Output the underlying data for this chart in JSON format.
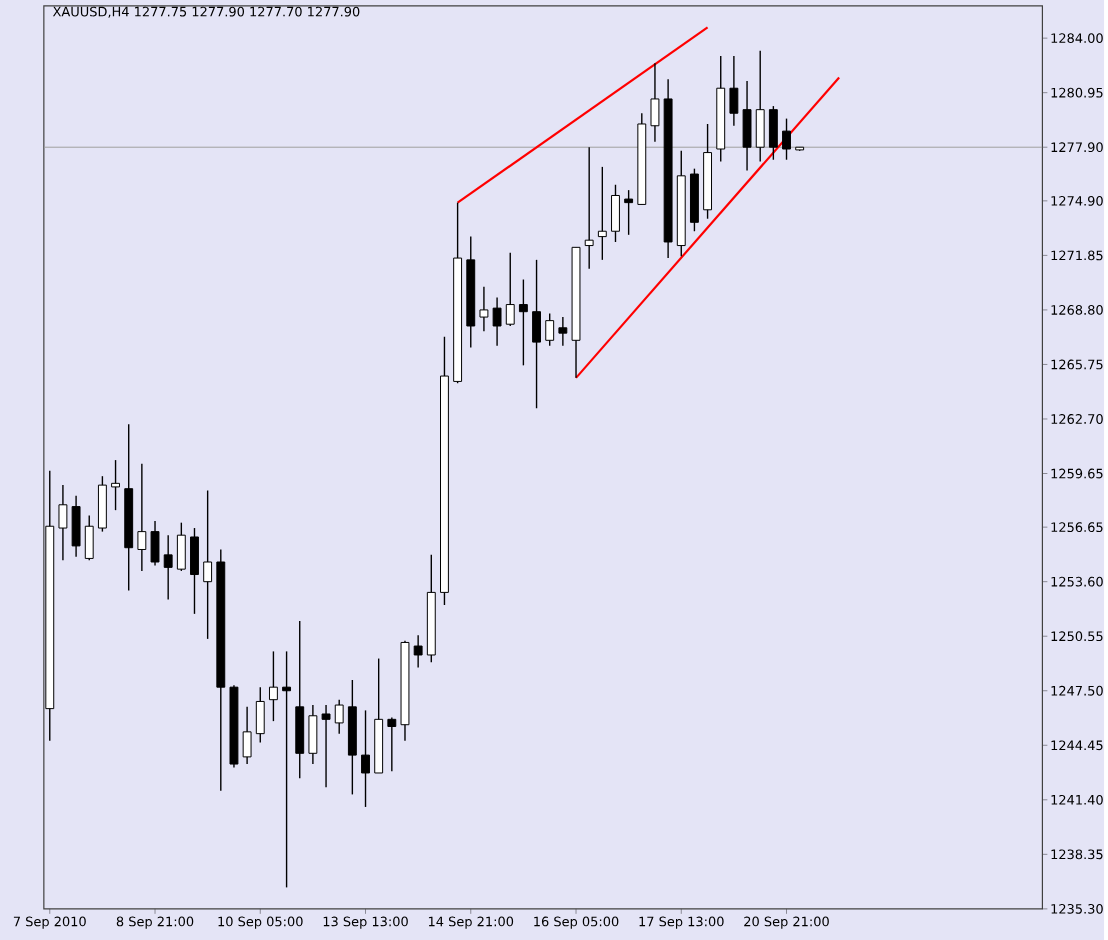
{
  "chart_data": {
    "type": "candlestick",
    "title": "XAUUSD,H4 1277.75 1277.90 1277.70 1277.90",
    "categories": [
      "7 Sep 2010",
      null,
      null,
      null,
      null,
      null,
      null,
      null,
      "8 Sep 21:00",
      null,
      null,
      null,
      null,
      null,
      null,
      null,
      "10 Sep 05:00",
      null,
      null,
      null,
      null,
      null,
      null,
      null,
      "13 Sep 13:00",
      null,
      null,
      null,
      null,
      null,
      null,
      null,
      "14 Sep 21:00",
      null,
      null,
      null,
      null,
      null,
      null,
      null,
      "16 Sep 05:00",
      null,
      null,
      null,
      null,
      null,
      null,
      null,
      "17 Sep 13:00",
      null,
      null,
      null,
      null,
      null,
      null,
      null,
      "20 Sep 21:00",
      null,
      null,
      null,
      null,
      null,
      null,
      null,
      null,
      null,
      null,
      null,
      null,
      null,
      null,
      null,
      null,
      null,
      null,
      null
    ],
    "ohlc": [
      [
        1246.5,
        1259.8,
        1244.7,
        1256.7
      ],
      [
        1256.6,
        1259.0,
        1254.8,
        1257.9
      ],
      [
        1257.8,
        1258.4,
        1255.0,
        1255.6
      ],
      [
        1254.9,
        1257.3,
        1254.8,
        1256.7
      ],
      [
        1256.6,
        1259.5,
        1256.4,
        1259.0
      ],
      [
        1258.9,
        1260.4,
        1257.6,
        1259.1
      ],
      [
        1258.8,
        1262.4,
        1253.1,
        1255.5
      ],
      [
        1255.4,
        1260.2,
        1254.2,
        1256.4
      ],
      [
        1256.4,
        1257.0,
        1254.5,
        1254.7
      ],
      [
        1255.1,
        1256.2,
        1252.6,
        1254.4
      ],
      [
        1254.3,
        1256.9,
        1254.2,
        1256.2
      ],
      [
        1256.1,
        1256.6,
        1251.8,
        1254.0
      ],
      [
        1253.6,
        1258.7,
        1250.4,
        1254.7
      ],
      [
        1254.7,
        1255.4,
        1241.9,
        1247.7
      ],
      [
        1247.7,
        1247.8,
        1243.2,
        1243.4
      ],
      [
        1243.8,
        1246.6,
        1243.4,
        1245.2
      ],
      [
        1245.1,
        1247.7,
        1244.6,
        1246.9
      ],
      [
        1247.0,
        1249.7,
        1245.8,
        1247.7
      ],
      [
        1247.7,
        1249.7,
        1236.5,
        1247.5
      ],
      [
        1246.6,
        1251.4,
        1242.6,
        1244.0
      ],
      [
        1244.0,
        1246.7,
        1243.4,
        1246.1
      ],
      [
        1246.2,
        1246.7,
        1242.1,
        1245.9
      ],
      [
        1245.7,
        1247.0,
        1245.1,
        1246.7
      ],
      [
        1246.6,
        1248.1,
        1241.7,
        1243.9
      ],
      [
        1243.9,
        1246.4,
        1241.0,
        1242.9
      ],
      [
        1242.9,
        1249.3,
        1242.9,
        1245.9
      ],
      [
        1245.9,
        1246.0,
        1243.0,
        1245.5
      ],
      [
        1245.6,
        1250.3,
        1244.7,
        1250.2
      ],
      [
        1250.0,
        1250.6,
        1248.8,
        1249.5
      ],
      [
        1249.5,
        1255.1,
        1249.1,
        1253.0
      ],
      [
        1253.0,
        1267.3,
        1252.3,
        1265.1
      ],
      [
        1264.8,
        1274.8,
        1264.7,
        1271.7
      ],
      [
        1271.6,
        1272.9,
        1266.7,
        1267.9
      ],
      [
        1268.4,
        1270.1,
        1267.6,
        1268.8
      ],
      [
        1268.9,
        1269.5,
        1266.8,
        1267.9
      ],
      [
        1268.0,
        1272.0,
        1267.9,
        1269.1
      ],
      [
        1269.1,
        1270.5,
        1265.7,
        1268.7
      ],
      [
        1268.7,
        1271.6,
        1263.3,
        1267.0
      ],
      [
        1267.1,
        1268.6,
        1266.8,
        1268.2
      ],
      [
        1267.8,
        1268.4,
        1266.8,
        1267.5
      ],
      [
        1267.1,
        1272.3,
        1265.0,
        1272.3
      ],
      [
        1272.4,
        1277.9,
        1271.1,
        1272.7
      ],
      [
        1272.9,
        1276.8,
        1271.6,
        1273.2
      ],
      [
        1273.2,
        1275.8,
        1272.6,
        1275.2
      ],
      [
        1275.0,
        1275.5,
        1273.0,
        1274.8
      ],
      [
        1274.7,
        1279.8,
        1274.7,
        1279.2
      ],
      [
        1279.1,
        1282.6,
        1278.2,
        1280.6
      ],
      [
        1280.6,
        1281.7,
        1271.7,
        1272.6
      ],
      [
        1272.4,
        1277.7,
        1271.8,
        1276.3
      ],
      [
        1276.4,
        1276.7,
        1273.2,
        1273.7
      ],
      [
        1274.4,
        1279.2,
        1273.9,
        1277.6
      ],
      [
        1277.8,
        1283.0,
        1277.1,
        1281.2
      ],
      [
        1281.2,
        1283.0,
        1279.1,
        1279.8
      ],
      [
        1280.0,
        1281.6,
        1276.6,
        1277.9
      ],
      [
        1277.9,
        1283.3,
        1277.1,
        1280.0
      ],
      [
        1280.0,
        1280.2,
        1277.2,
        1277.9
      ],
      [
        1278.8,
        1279.5,
        1277.2,
        1277.8
      ],
      [
        1277.75,
        1277.9,
        1277.7,
        1277.9
      ],
      null,
      null,
      null,
      null,
      null,
      null,
      null,
      null,
      null,
      null,
      null,
      null,
      null,
      null,
      null,
      null,
      null,
      null
    ],
    "series": [
      {
        "type": "line",
        "color": "#ff0000",
        "values": [
          null,
          null,
          null,
          null,
          null,
          null,
          null,
          null,
          null,
          null,
          null,
          null,
          null,
          null,
          null,
          null,
          null,
          null,
          null,
          null,
          null,
          null,
          null,
          null,
          null,
          null,
          null,
          null,
          null,
          null,
          null,
          1274.8,
          null,
          null,
          null,
          null,
          null,
          null,
          null,
          null,
          null,
          null,
          null,
          null,
          null,
          null,
          null,
          null,
          null,
          null,
          1284.6,
          null,
          null,
          null,
          null,
          null,
          null,
          null,
          null,
          null,
          null,
          null,
          null,
          null,
          null,
          null,
          null,
          null,
          null,
          null,
          null,
          null,
          null,
          null,
          null,
          null
        ]
      },
      {
        "type": "line",
        "color": "#ff0000",
        "values": [
          null,
          null,
          null,
          null,
          null,
          null,
          null,
          null,
          null,
          null,
          null,
          null,
          null,
          null,
          null,
          null,
          null,
          null,
          null,
          null,
          null,
          null,
          null,
          null,
          null,
          null,
          null,
          null,
          null,
          null,
          null,
          null,
          null,
          null,
          null,
          null,
          null,
          null,
          null,
          null,
          1265.0,
          null,
          null,
          null,
          null,
          null,
          null,
          null,
          null,
          null,
          null,
          null,
          null,
          null,
          null,
          null,
          null,
          null,
          null,
          null,
          1281.8,
          null,
          null,
          null,
          null,
          null,
          null,
          null,
          null,
          null,
          null,
          null,
          null,
          null,
          null,
          null
        ]
      }
    ],
    "ylim": [
      1235.3,
      1285.8
    ],
    "yticks": [
      {
        "value": 1284.0,
        "label": "1284.00"
      },
      {
        "value": 1280.95,
        "label": "1280.95"
      },
      {
        "value": 1277.9,
        "label": "1277.90"
      },
      {
        "value": 1274.9,
        "label": "1274.90"
      },
      {
        "value": 1271.85,
        "label": "1271.85"
      },
      {
        "value": 1268.8,
        "label": "1268.80"
      },
      {
        "value": 1265.75,
        "label": "1265.75"
      },
      {
        "value": 1262.7,
        "label": "1262.70"
      },
      {
        "value": 1259.65,
        "label": "1259.65"
      },
      {
        "value": 1256.65,
        "label": "1256.65"
      },
      {
        "value": 1253.6,
        "label": "1253.60"
      },
      {
        "value": 1250.55,
        "label": "1250.55"
      },
      {
        "value": 1247.5,
        "label": "1247.50"
      },
      {
        "value": 1244.45,
        "label": "1244.45"
      },
      {
        "value": 1241.4,
        "label": "1241.40"
      },
      {
        "value": 1238.35,
        "label": "1238.35"
      },
      {
        "value": 1235.3,
        "label": "1235.30"
      }
    ],
    "ref_lines": [
      {
        "axis": "y",
        "value": 1277.9,
        "color": "#a0a0a0"
      }
    ]
  }
}
